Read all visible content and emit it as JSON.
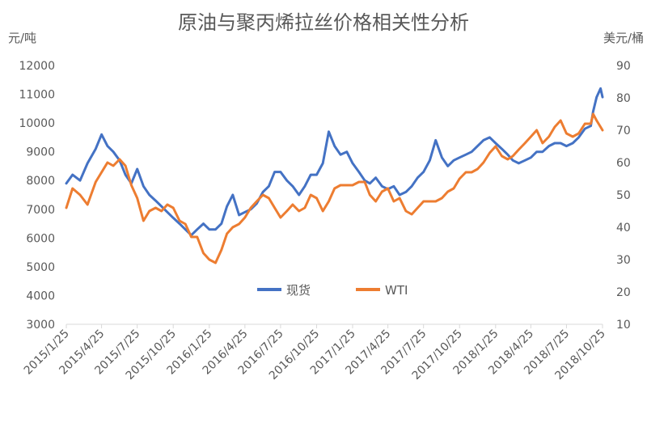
{
  "chart_data": {
    "type": "line",
    "title": "原油与聚丙烯拉丝价格相关性分析",
    "y_left": {
      "label": "元/吨",
      "min": 3000,
      "max": 12000,
      "ticks": [
        3000,
        4000,
        5000,
        6000,
        7000,
        8000,
        9000,
        10000,
        11000,
        12000
      ]
    },
    "y_right": {
      "label": "美元/桶",
      "min": 10,
      "max": 90,
      "ticks": [
        10,
        20,
        30,
        40,
        50,
        60,
        70,
        80,
        90
      ]
    },
    "x_ticks": [
      "2015/1/25",
      "2015/4/25",
      "2015/7/25",
      "2015/10/25",
      "2016/1/25",
      "2016/4/25",
      "2016/7/25",
      "2016/10/25",
      "2017/1/25",
      "2017/4/25",
      "2017/7/25",
      "2017/10/25",
      "2018/1/25",
      "2018/4/25",
      "2018/7/25",
      "2018/10/25"
    ],
    "legend_position": "bottom-center",
    "grid": false,
    "series": [
      {
        "name": "现货",
        "axis": "left",
        "color": "#4472C4",
        "x": [
          "2015/1/25",
          "2015/2/10",
          "2015/3/1",
          "2015/3/20",
          "2015/4/10",
          "2015/4/25",
          "2015/5/10",
          "2015/5/25",
          "2015/6/10",
          "2015/6/25",
          "2015/7/10",
          "2015/7/25",
          "2015/8/10",
          "2015/8/25",
          "2015/9/10",
          "2015/9/25",
          "2015/10/10",
          "2015/10/25",
          "2015/11/10",
          "2015/11/25",
          "2015/12/10",
          "2015/12/25",
          "2016/1/10",
          "2016/1/25",
          "2016/2/10",
          "2016/2/25",
          "2016/3/10",
          "2016/3/25",
          "2016/4/10",
          "2016/4/25",
          "2016/5/10",
          "2016/5/25",
          "2016/6/10",
          "2016/6/25",
          "2016/7/10",
          "2016/7/25",
          "2016/8/10",
          "2016/8/25",
          "2016/9/10",
          "2016/9/25",
          "2016/10/10",
          "2016/10/25",
          "2016/11/10",
          "2016/11/25",
          "2016/12/10",
          "2016/12/25",
          "2017/1/10",
          "2017/1/25",
          "2017/2/10",
          "2017/2/25",
          "2017/3/10",
          "2017/3/25",
          "2017/4/10",
          "2017/4/25",
          "2017/5/10",
          "2017/5/25",
          "2017/6/10",
          "2017/6/25",
          "2017/7/10",
          "2017/7/25",
          "2017/8/10",
          "2017/8/25",
          "2017/9/10",
          "2017/9/25",
          "2017/10/10",
          "2017/10/25",
          "2017/11/10",
          "2017/11/25",
          "2017/12/10",
          "2017/12/25",
          "2018/1/10",
          "2018/1/25",
          "2018/2/10",
          "2018/2/25",
          "2018/3/10",
          "2018/3/25",
          "2018/4/10",
          "2018/4/25",
          "2018/5/10",
          "2018/5/25",
          "2018/6/10",
          "2018/6/25",
          "2018/7/10",
          "2018/7/25",
          "2018/8/10",
          "2018/8/25",
          "2018/9/10",
          "2018/9/25",
          "2018/10/1",
          "2018/10/10",
          "2018/10/20",
          "2018/10/25"
        ],
        "values": [
          7900,
          8200,
          8000,
          8600,
          9100,
          9600,
          9200,
          9000,
          8700,
          8200,
          7900,
          8400,
          7800,
          7500,
          7300,
          7100,
          6900,
          6700,
          6500,
          6300,
          6100,
          6300,
          6500,
          6300,
          6300,
          6500,
          7100,
          7500,
          6800,
          6900,
          7000,
          7200,
          7600,
          7800,
          8300,
          8300,
          8000,
          7800,
          7500,
          7800,
          8200,
          8200,
          8600,
          9700,
          9200,
          8900,
          9000,
          8600,
          8300,
          8000,
          7900,
          8100,
          7800,
          7700,
          7800,
          7500,
          7600,
          7800,
          8100,
          8300,
          8700,
          9400,
          8800,
          8500,
          8700,
          8800,
          8900,
          9000,
          9200,
          9400,
          9500,
          9300,
          9100,
          8900,
          8700,
          8600,
          8700,
          8800,
          9000,
          9000,
          9200,
          9300,
          9300,
          9200,
          9300,
          9500,
          9800,
          9900,
          10400,
          10900,
          11200,
          10900
        ]
      },
      {
        "name": "WTI",
        "axis": "right",
        "color": "#ED7D31",
        "x": [
          "2015/1/25",
          "2015/2/10",
          "2015/3/1",
          "2015/3/20",
          "2015/4/10",
          "2015/4/25",
          "2015/5/10",
          "2015/5/25",
          "2015/6/10",
          "2015/6/25",
          "2015/7/10",
          "2015/7/25",
          "2015/8/10",
          "2015/8/25",
          "2015/9/10",
          "2015/9/25",
          "2015/10/10",
          "2015/10/25",
          "2015/11/10",
          "2015/11/25",
          "2015/12/10",
          "2015/12/25",
          "2016/1/10",
          "2016/1/25",
          "2016/2/10",
          "2016/2/25",
          "2016/3/10",
          "2016/3/25",
          "2016/4/10",
          "2016/4/25",
          "2016/5/10",
          "2016/5/25",
          "2016/6/10",
          "2016/6/25",
          "2016/7/10",
          "2016/7/25",
          "2016/8/10",
          "2016/8/25",
          "2016/9/10",
          "2016/9/25",
          "2016/10/10",
          "2016/10/25",
          "2016/11/10",
          "2016/11/25",
          "2016/12/10",
          "2016/12/25",
          "2017/1/10",
          "2017/1/25",
          "2017/2/10",
          "2017/2/25",
          "2017/3/10",
          "2017/3/25",
          "2017/4/10",
          "2017/4/25",
          "2017/5/10",
          "2017/5/25",
          "2017/6/10",
          "2017/6/25",
          "2017/7/10",
          "2017/7/25",
          "2017/8/10",
          "2017/8/25",
          "2017/9/10",
          "2017/9/25",
          "2017/10/10",
          "2017/10/25",
          "2017/11/10",
          "2017/11/25",
          "2017/12/10",
          "2017/12/25",
          "2018/1/10",
          "2018/1/25",
          "2018/2/10",
          "2018/2/25",
          "2018/3/10",
          "2018/3/25",
          "2018/4/10",
          "2018/4/25",
          "2018/5/10",
          "2018/5/25",
          "2018/6/10",
          "2018/6/25",
          "2018/7/10",
          "2018/7/25",
          "2018/8/10",
          "2018/8/25",
          "2018/9/10",
          "2018/9/25",
          "2018/10/1",
          "2018/10/10",
          "2018/10/20",
          "2018/10/25"
        ],
        "values": [
          46,
          52,
          50,
          47,
          54,
          57,
          60,
          59,
          61,
          59,
          53,
          49,
          42,
          45,
          46,
          45,
          47,
          46,
          42,
          41,
          37,
          37,
          32,
          30,
          29,
          33,
          38,
          40,
          41,
          43,
          46,
          48,
          50,
          49,
          46,
          43,
          45,
          47,
          45,
          46,
          50,
          49,
          45,
          48,
          52,
          53,
          53,
          53,
          54,
          54,
          50,
          48,
          51,
          52,
          48,
          49,
          45,
          44,
          46,
          48,
          48,
          48,
          49,
          51,
          52,
          55,
          57,
          57,
          58,
          60,
          63,
          65,
          62,
          61,
          62,
          64,
          66,
          68,
          70,
          66,
          68,
          71,
          73,
          69,
          68,
          69,
          72,
          72,
          75,
          73,
          71,
          70
        ]
      }
    ]
  }
}
